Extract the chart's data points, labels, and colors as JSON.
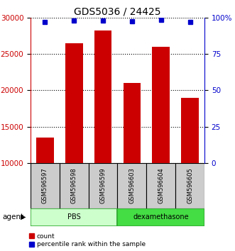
{
  "title": "GDS5036 / 24425",
  "samples": [
    "GSM596597",
    "GSM596598",
    "GSM596599",
    "GSM596603",
    "GSM596604",
    "GSM596605"
  ],
  "bar_values": [
    13500,
    26500,
    28200,
    21000,
    26000,
    19000
  ],
  "bar_color": "#cc0000",
  "percentile_values": [
    97,
    98,
    98,
    97.5,
    98.5,
    97
  ],
  "dot_color": "#0000cc",
  "ylim_left": [
    10000,
    30000
  ],
  "ylim_right": [
    0,
    100
  ],
  "yticks_left": [
    10000,
    15000,
    20000,
    25000,
    30000
  ],
  "yticks_right": [
    0,
    25,
    50,
    75,
    100
  ],
  "yticklabels_right": [
    "0",
    "25",
    "50",
    "75",
    "100%"
  ],
  "left_axis_color": "#cc0000",
  "right_axis_color": "#0000cc",
  "groups": [
    {
      "label": "PBS",
      "indices": [
        0,
        1,
        2
      ],
      "face_color": "#ccffcc",
      "edge_color": "#33aa33"
    },
    {
      "label": "dexamethasone",
      "indices": [
        3,
        4,
        5
      ],
      "face_color": "#44dd44",
      "edge_color": "#33aa33"
    }
  ],
  "agent_label": "agent",
  "legend_items": [
    {
      "label": "count",
      "color": "#cc0000"
    },
    {
      "label": "percentile rank within the sample",
      "color": "#0000cc"
    }
  ],
  "sample_box_color": "#cccccc",
  "bar_width": 0.6
}
